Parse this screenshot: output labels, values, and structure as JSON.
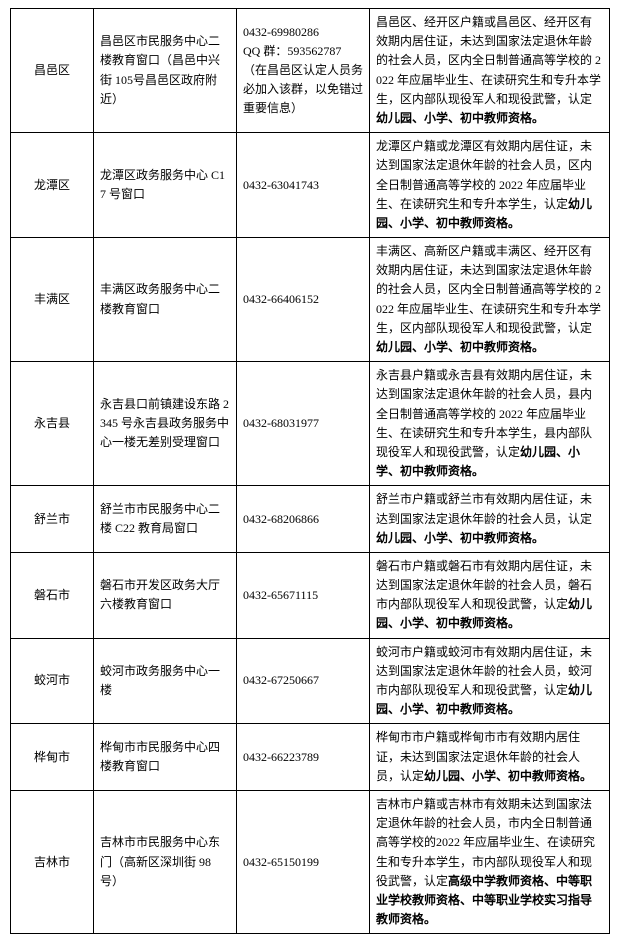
{
  "rows": [
    {
      "name": "昌邑区",
      "addr": "昌邑区市民服务中心二楼教育窗口（昌邑中兴街 105号昌邑区政府附近）",
      "phone": "0432-69980286\nQQ 群：593562787（在昌邑区认定人员务必加入该群，以免错过重要信息）",
      "desc_plain": "昌邑区、经开区户籍或昌邑区、经开区有效期内居住证，未达到国家法定退休年龄的社会人员，区内全日制普通高等学校的 2022 年应届毕业生、在读研究生和专升本学生，区内部队现役军人和现役武警，认定",
      "desc_bold": "幼儿园、小学、初中教师资格。"
    },
    {
      "name": "龙潭区",
      "addr": "龙潭区政务服务中心 C17 号窗口",
      "phone": "0432-63041743",
      "desc_plain": "龙潭区户籍或龙潭区有效期内居住证，未达到国家法定退休年龄的社会人员，区内全日制普通高等学校的 2022 年应届毕业生、在读研究生和专升本学生，认定",
      "desc_bold": "幼儿园、小学、初中教师资格。"
    },
    {
      "name": "丰满区",
      "addr": "丰满区政务服务中心二楼教育窗口",
      "phone": "0432-66406152",
      "desc_plain": "丰满区、高新区户籍或丰满区、经开区有效期内居住证，未达到国家法定退休年龄的社会人员，区内全日制普通高等学校的 2022 年应届毕业生、在读研究生和专升本学生，区内部队现役军人和现役武警，认定",
      "desc_bold": "幼儿园、小学、初中教师资格。"
    },
    {
      "name": "永吉县",
      "addr": "永吉县口前镇建设东路 2345 号永吉县政务服务中心一楼无差别受理窗口",
      "phone": "0432-68031977",
      "desc_plain": "永吉县户籍或永吉县有效期内居住证，未达到国家法定退休年龄的社会人员，县内全日制普通高等学校的 2022 年应届毕业生、在读研究生和专升本学生，县内部队现役军人和现役武警，认定",
      "desc_bold": "幼儿园、小学、初中教师资格。"
    },
    {
      "name": "舒兰市",
      "addr": "舒兰市市民服务中心二楼 C22 教育局窗口",
      "phone": "0432-68206866",
      "desc_plain": "舒兰市户籍或舒兰市有效期内居住证，未达到国家法定退休年龄的社会人员，认定",
      "desc_bold": "幼儿园、小学、初中教师资格。"
    },
    {
      "name": "磐石市",
      "addr": "磐石市开发区政务大厅六楼教育窗口",
      "phone": "0432-65671115",
      "desc_plain": "磐石市户籍或磐石市有效期内居住证，未达到国家法定退休年龄的社会人员，磐石市内部队现役军人和现役武警，认定",
      "desc_bold": "幼儿园、小学、初中教师资格。"
    },
    {
      "name": "蛟河市",
      "addr": "蛟河市政务服务中心一楼",
      "phone": "0432-67250667",
      "desc_plain": "蛟河市户籍或蛟河市有效期内居住证，未达到国家法定退休年龄的社会人员，蛟河市内部队现役军人和现役武警，认定",
      "desc_bold": "幼儿园、小学、初中教师资格。"
    },
    {
      "name": "桦甸市",
      "addr": "桦甸市市民服务中心四楼教育窗口",
      "phone": "0432-66223789",
      "desc_plain": "桦甸市市户籍或桦甸市市有效期内居住证，未达到国家法定退休年龄的社会人员，认定",
      "desc_bold": "幼儿园、小学、初中教师资格。"
    },
    {
      "name": "吉林市",
      "addr": "吉林市市民服务中心东门（高新区深圳街 98 号）",
      "phone": "0432-65150199",
      "desc_plain": "吉林市户籍或吉林市有效期未达到国家法定退休年龄的社会人员，市内全日制普通高等学校的2022 年应届毕业生、在读研究生和专升本学生，市内部队现役军人和现役武警，认定",
      "desc_bold": "高级中学教师资格、中等职业学校教师资格、中等职业学校实习指导教师资格。"
    }
  ]
}
